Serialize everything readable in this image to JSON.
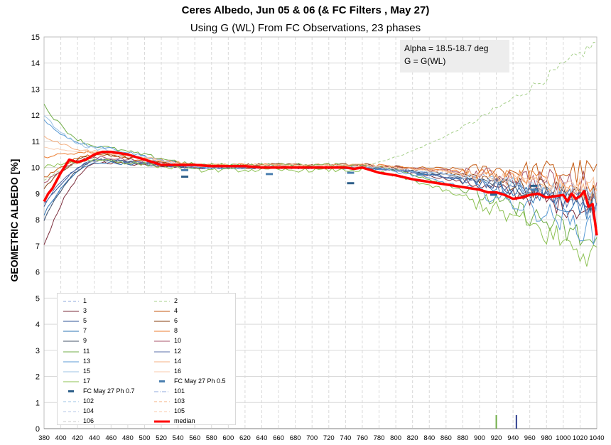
{
  "chart_data": {
    "type": "line",
    "title": "Ceres Albedo, Jun 05 & 06 (& FC Filters , May 27)",
    "subtitle": "Using G (WL) From FC Observations, 23 phases",
    "ylabel": "GEOMETRIC ALBEDO [%]",
    "xlabel": "",
    "xlim": [
      380,
      1040
    ],
    "ylim": [
      0,
      15
    ],
    "x_ticks": [
      380,
      400,
      420,
      440,
      460,
      480,
      500,
      520,
      540,
      560,
      580,
      600,
      620,
      640,
      660,
      680,
      700,
      720,
      740,
      760,
      780,
      800,
      820,
      840,
      860,
      880,
      900,
      920,
      940,
      960,
      980,
      1000,
      1020,
      1040
    ],
    "y_ticks": [
      0,
      1,
      2,
      3,
      4,
      5,
      6,
      7,
      8,
      9,
      10,
      11,
      12,
      13,
      14,
      15
    ],
    "grid": true,
    "annotation": [
      "Alpha = 18.5-18.7  deg",
      "G = G(WL)"
    ],
    "median": {
      "name": "median",
      "color": "#ff0000",
      "x": [
        380,
        385,
        390,
        400,
        410,
        420,
        430,
        440,
        450,
        460,
        470,
        480,
        490,
        500,
        510,
        520,
        540,
        560,
        580,
        600,
        620,
        640,
        660,
        680,
        700,
        720,
        740,
        750,
        760,
        780,
        800,
        820,
        840,
        860,
        880,
        900,
        910,
        920,
        930,
        940,
        950,
        960,
        970,
        980,
        990,
        1000,
        1005,
        1010,
        1015,
        1020,
        1025,
        1030,
        1035,
        1040
      ],
      "y": [
        8.7,
        9.0,
        9.2,
        9.8,
        10.3,
        10.2,
        10.3,
        10.5,
        10.6,
        10.6,
        10.55,
        10.5,
        10.4,
        10.3,
        10.2,
        10.1,
        10.1,
        10.1,
        10.05,
        10.05,
        10.05,
        10.0,
        10.0,
        10.0,
        10.0,
        10.0,
        10.0,
        9.95,
        10.0,
        9.8,
        9.7,
        9.55,
        9.45,
        9.35,
        9.25,
        9.15,
        9.05,
        9.05,
        8.95,
        8.8,
        8.85,
        8.95,
        9.0,
        8.85,
        8.9,
        8.95,
        8.7,
        9.0,
        8.8,
        8.9,
        9.1,
        8.5,
        8.6,
        7.4
      ]
    },
    "series": [
      {
        "name": "1",
        "style": "dash",
        "color": "#8faadc",
        "y_start": 8.0,
        "y_peak": 10.3,
        "y_mid": 10.0,
        "y_end": 9.0,
        "noise": 0.25
      },
      {
        "name": "2",
        "style": "dash",
        "color": "#a9d18e",
        "y_start": 9.5,
        "y_peak": 10.3,
        "y_mid": 10.1,
        "y_end": 14.8,
        "noise": 0.15
      },
      {
        "name": "3",
        "style": "solid",
        "color": "#7b2c3b",
        "y_start": 7.0,
        "y_peak": 10.2,
        "y_mid": 10.0,
        "y_end": 8.2,
        "noise": 0.3
      },
      {
        "name": "4",
        "style": "solid",
        "color": "#c55a11",
        "y_start": 9.6,
        "y_peak": 10.5,
        "y_mid": 10.0,
        "y_end": 9.8,
        "noise": 0.35
      },
      {
        "name": "5",
        "style": "solid",
        "color": "#2f5597",
        "y_start": 8.5,
        "y_peak": 10.3,
        "y_mid": 10.0,
        "y_end": 8.6,
        "noise": 0.3
      },
      {
        "name": "6",
        "style": "solid",
        "color": "#843c0c",
        "y_start": 9.2,
        "y_peak": 10.5,
        "y_mid": 10.1,
        "y_end": 8.8,
        "noise": 0.35
      },
      {
        "name": "7",
        "style": "solid",
        "color": "#2e75b6",
        "y_start": 8.2,
        "y_peak": 10.2,
        "y_mid": 10.0,
        "y_end": 8.4,
        "noise": 0.3
      },
      {
        "name": "8",
        "style": "solid",
        "color": "#ed7d31",
        "y_start": 10.4,
        "y_peak": 10.6,
        "y_mid": 10.1,
        "y_end": 9.2,
        "noise": 0.3
      },
      {
        "name": "9",
        "style": "solid",
        "color": "#44546a",
        "y_start": 8.0,
        "y_peak": 10.3,
        "y_mid": 10.0,
        "y_end": 8.7,
        "noise": 0.3
      },
      {
        "name": "10",
        "style": "solid",
        "color": "#a9556b",
        "y_start": 9.4,
        "y_peak": 10.4,
        "y_mid": 10.05,
        "y_end": 9.3,
        "noise": 0.35
      },
      {
        "name": "11",
        "style": "solid",
        "color": "#70ad47",
        "y_start": 12.4,
        "y_peak": 10.8,
        "y_mid": 10.1,
        "y_end": 7.0,
        "noise": 0.4
      },
      {
        "name": "12",
        "style": "solid",
        "color": "#5b6fa8",
        "y_start": 8.6,
        "y_peak": 10.3,
        "y_mid": 10.0,
        "y_end": 8.5,
        "noise": 0.3
      },
      {
        "name": "13",
        "style": "solid",
        "color": "#5b9bd5",
        "y_start": 11.8,
        "y_peak": 10.8,
        "y_mid": 10.0,
        "y_end": 7.5,
        "noise": 0.35
      },
      {
        "name": "14",
        "style": "solid",
        "color": "#f4b183",
        "y_start": 11.2,
        "y_peak": 10.6,
        "y_mid": 10.1,
        "y_end": 9.0,
        "noise": 0.3
      },
      {
        "name": "15",
        "style": "solid",
        "color": "#9dc3e6",
        "y_start": 12.0,
        "y_peak": 10.7,
        "y_mid": 10.0,
        "y_end": 8.8,
        "noise": 0.3
      },
      {
        "name": "16",
        "style": "solid",
        "color": "#f8cbad",
        "y_start": 10.8,
        "y_peak": 10.6,
        "y_mid": 10.05,
        "y_end": 9.1,
        "noise": 0.3
      },
      {
        "name": "17",
        "style": "solid",
        "color": "#8cc152",
        "y_start": 10.0,
        "y_peak": 10.3,
        "y_mid": 9.9,
        "y_end": 6.5,
        "noise": 0.45
      }
    ],
    "fc_filters": [
      {
        "name": "FC May 27 Ph 0.5",
        "color": "#4a7fb0",
        "points": [
          [
            548,
            9.9
          ],
          [
            649,
            9.75
          ],
          [
            746,
            9.8
          ],
          [
            829,
            9.75
          ],
          [
            917,
            8.95
          ],
          [
            965,
            9.15
          ]
        ]
      },
      {
        "name": "FC May 27 Ph 0.7",
        "color": "#2e5f8a",
        "points": [
          [
            548,
            9.65
          ],
          [
            746,
            9.4
          ],
          [
            829,
            9.5
          ],
          [
            917,
            9.0
          ],
          [
            965,
            9.3
          ]
        ]
      }
    ],
    "bottom_marks": [
      {
        "x": 920,
        "color": "#70ad47"
      },
      {
        "x": 944,
        "color": "#2f3f8f"
      }
    ],
    "legend": [
      {
        "label": "1",
        "style": "dash",
        "color": "#8faadc"
      },
      {
        "label": "2",
        "style": "dash",
        "color": "#a9d18e"
      },
      {
        "label": "3",
        "style": "solid",
        "color": "#7b2c3b"
      },
      {
        "label": "4",
        "style": "solid",
        "color": "#c55a11"
      },
      {
        "label": "5",
        "style": "solid",
        "color": "#2f5597"
      },
      {
        "label": "6",
        "style": "solid",
        "color": "#843c0c"
      },
      {
        "label": "7",
        "style": "solid",
        "color": "#2e75b6"
      },
      {
        "label": "8",
        "style": "solid",
        "color": "#ed7d31"
      },
      {
        "label": "9",
        "style": "solid",
        "color": "#44546a"
      },
      {
        "label": "10",
        "style": "solid",
        "color": "#a9556b"
      },
      {
        "label": "11",
        "style": "solid",
        "color": "#70ad47"
      },
      {
        "label": "12",
        "style": "solid",
        "color": "#5b6fa8"
      },
      {
        "label": "13",
        "style": "solid",
        "color": "#5b9bd5"
      },
      {
        "label": "14",
        "style": "solid",
        "color": "#f4b183"
      },
      {
        "label": "15",
        "style": "solid",
        "color": "#9dc3e6"
      },
      {
        "label": "16",
        "style": "solid",
        "color": "#f8cbad"
      },
      {
        "label": "17",
        "style": "solid",
        "color": "#8cc152"
      },
      {
        "label": "FC May 27 Ph 0.5",
        "style": "marker",
        "color": "#4a7fb0"
      },
      {
        "label": "FC May 27 Ph 0.7",
        "style": "marker",
        "color": "#2e5f8a"
      },
      {
        "label": "101",
        "style": "dashdot",
        "color": "#8faadc"
      },
      {
        "label": "102",
        "style": "dash",
        "color": "#9dc3e6"
      },
      {
        "label": "103",
        "style": "dash",
        "color": "#f4b183"
      },
      {
        "label": "104",
        "style": "dash",
        "color": "#b4c7e7"
      },
      {
        "label": "105",
        "style": "dash",
        "color": "#f8cbad"
      },
      {
        "label": "106",
        "style": "dash",
        "color": "#c9c9c9"
      },
      {
        "label": "median",
        "style": "thick",
        "color": "#ff0000"
      }
    ]
  }
}
